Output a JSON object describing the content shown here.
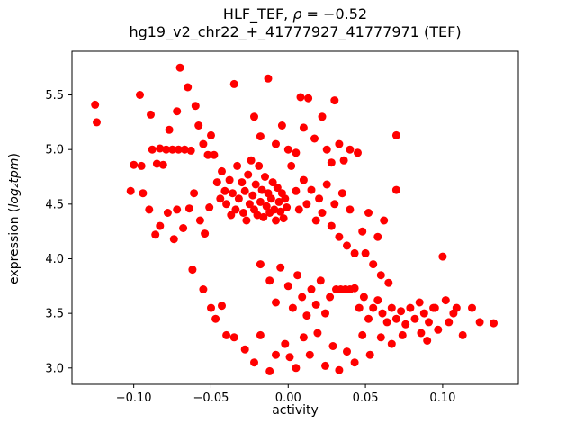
{
  "figure": {
    "title_parts": {
      "prefix": "HLF_TEF, ",
      "rho": "ρ",
      "suffix": " = −0.52"
    },
    "subtitle": "hg19_v2_chr22_+_41777927_41777971 (TEF)"
  },
  "chart_data": {
    "type": "scatter",
    "title": "HLF_TEF, ρ = −0.52",
    "subtitle": "hg19_v2_chr22_+_41777927_41777971 (TEF)",
    "xlabel": "activity",
    "ylabel": "expression (log₂tpm)",
    "ylabel_parts": {
      "prefix": "expression (",
      "italic": "log₂tpm",
      "suffix": ")"
    },
    "marker_color": "#ff0000",
    "marker_radius": 4.5,
    "grid": false,
    "legend": "none",
    "xlim": [
      -0.14,
      0.149
    ],
    "ylim": [
      2.85,
      5.9
    ],
    "xticks": {
      "values": [
        -0.1,
        -0.05,
        0.0,
        0.05,
        0.1
      ],
      "labels": [
        "−0.10",
        "−0.05",
        "0.00",
        "0.05",
        "0.10"
      ]
    },
    "yticks": {
      "values": [
        3.0,
        3.5,
        4.0,
        4.5,
        5.0,
        5.5
      ],
      "labels": [
        "3.0",
        "3.5",
        "4.0",
        "4.5",
        "5.0",
        "5.5"
      ]
    },
    "points": [
      [
        -0.125,
        5.41
      ],
      [
        -0.124,
        5.25
      ],
      [
        -0.096,
        5.5
      ],
      [
        -0.089,
        5.32
      ],
      [
        -0.088,
        5.0
      ],
      [
        -0.083,
        5.01
      ],
      [
        -0.079,
        5.0
      ],
      [
        -0.075,
        5.0
      ],
      [
        -0.071,
        5.0
      ],
      [
        -0.067,
        5.0
      ],
      [
        -0.063,
        4.99
      ],
      [
        -0.1,
        4.86
      ],
      [
        -0.095,
        4.85
      ],
      [
        -0.102,
        4.62
      ],
      [
        -0.094,
        4.6
      ],
      [
        -0.085,
        4.87
      ],
      [
        -0.081,
        4.86
      ],
      [
        -0.077,
        5.18
      ],
      [
        -0.072,
        5.35
      ],
      [
        -0.07,
        5.75
      ],
      [
        -0.065,
        5.57
      ],
      [
        -0.06,
        5.4
      ],
      [
        -0.058,
        5.22
      ],
      [
        -0.055,
        5.05
      ],
      [
        -0.052,
        4.95
      ],
      [
        -0.05,
        5.13
      ],
      [
        -0.09,
        4.45
      ],
      [
        -0.086,
        4.22
      ],
      [
        -0.083,
        4.3
      ],
      [
        -0.078,
        4.42
      ],
      [
        -0.074,
        4.18
      ],
      [
        -0.072,
        4.45
      ],
      [
        -0.068,
        4.28
      ],
      [
        -0.064,
        4.46
      ],
      [
        -0.061,
        4.6
      ],
      [
        -0.057,
        4.35
      ],
      [
        -0.054,
        4.23
      ],
      [
        -0.051,
        4.47
      ],
      [
        -0.062,
        3.9
      ],
      [
        -0.055,
        3.72
      ],
      [
        -0.05,
        3.55
      ],
      [
        -0.047,
        3.45
      ],
      [
        -0.043,
        3.57
      ],
      [
        -0.04,
        3.3
      ],
      [
        -0.035,
        3.28
      ],
      [
        -0.028,
        3.17
      ],
      [
        -0.022,
        3.05
      ],
      [
        -0.012,
        2.97
      ],
      [
        -0.018,
        3.3
      ],
      [
        -0.008,
        3.12
      ],
      [
        -0.048,
        4.95
      ],
      [
        -0.046,
        4.7
      ],
      [
        -0.044,
        4.55
      ],
      [
        -0.043,
        4.8
      ],
      [
        -0.041,
        4.62
      ],
      [
        -0.04,
        4.5
      ],
      [
        -0.038,
        4.72
      ],
      [
        -0.037,
        4.4
      ],
      [
        -0.036,
        4.6
      ],
      [
        -0.034,
        4.45
      ],
      [
        -0.033,
        4.85
      ],
      [
        -0.032,
        4.55
      ],
      [
        -0.03,
        4.7
      ],
      [
        -0.029,
        4.42
      ],
      [
        -0.028,
        4.62
      ],
      [
        -0.027,
        4.35
      ],
      [
        -0.026,
        4.77
      ],
      [
        -0.025,
        4.5
      ],
      [
        -0.024,
        4.9
      ],
      [
        -0.023,
        4.58
      ],
      [
        -0.022,
        4.45
      ],
      [
        -0.021,
        4.68
      ],
      [
        -0.02,
        4.4
      ],
      [
        -0.019,
        4.85
      ],
      [
        -0.018,
        4.52
      ],
      [
        -0.017,
        4.63
      ],
      [
        -0.016,
        4.38
      ],
      [
        -0.015,
        4.75
      ],
      [
        -0.014,
        4.48
      ],
      [
        -0.013,
        4.6
      ],
      [
        -0.012,
        4.42
      ],
      [
        -0.011,
        4.55
      ],
      [
        -0.01,
        4.7
      ],
      [
        -0.009,
        4.45
      ],
      [
        -0.008,
        4.35
      ],
      [
        -0.007,
        4.65
      ],
      [
        -0.006,
        4.52
      ],
      [
        -0.005,
        4.43
      ],
      [
        -0.004,
        4.6
      ],
      [
        -0.003,
        4.37
      ],
      [
        -0.002,
        4.55
      ],
      [
        -0.001,
        4.47
      ],
      [
        -0.035,
        5.6
      ],
      [
        -0.013,
        5.65
      ],
      [
        -0.022,
        5.3
      ],
      [
        -0.018,
        5.12
      ],
      [
        -0.008,
        5.05
      ],
      [
        0.0,
        5.0
      ],
      [
        -0.004,
        5.22
      ],
      [
        0.008,
        5.48
      ],
      [
        0.013,
        5.47
      ],
      [
        0.03,
        5.45
      ],
      [
        0.022,
        5.3
      ],
      [
        0.017,
        5.1
      ],
      [
        0.005,
        4.97
      ],
      [
        0.01,
        5.2
      ],
      [
        0.025,
        5.0
      ],
      [
        0.028,
        4.88
      ],
      [
        0.033,
        5.05
      ],
      [
        0.002,
        4.85
      ],
      [
        0.005,
        4.62
      ],
      [
        0.007,
        4.45
      ],
      [
        0.01,
        4.72
      ],
      [
        0.012,
        4.5
      ],
      [
        0.015,
        4.63
      ],
      [
        0.018,
        4.35
      ],
      [
        0.02,
        4.55
      ],
      [
        0.022,
        4.42
      ],
      [
        0.025,
        4.68
      ],
      [
        0.028,
        4.3
      ],
      [
        0.03,
        4.5
      ],
      [
        0.033,
        4.2
      ],
      [
        0.035,
        4.6
      ],
      [
        0.038,
        4.12
      ],
      [
        0.04,
        4.45
      ],
      [
        0.043,
        4.05
      ],
      [
        0.045,
        4.97
      ],
      [
        0.048,
        4.25
      ],
      [
        0.052,
        4.42
      ],
      [
        0.058,
        4.2
      ],
      [
        0.062,
        4.35
      ],
      [
        0.07,
        4.63
      ],
      [
        0.04,
        5.0
      ],
      [
        0.036,
        4.9
      ],
      [
        0.07,
        5.13
      ],
      [
        -0.018,
        3.95
      ],
      [
        -0.012,
        3.8
      ],
      [
        -0.008,
        3.6
      ],
      [
        -0.005,
        3.92
      ],
      [
        0.0,
        3.75
      ],
      [
        0.003,
        3.55
      ],
      [
        0.006,
        3.85
      ],
      [
        0.009,
        3.65
      ],
      [
        0.012,
        3.48
      ],
      [
        0.015,
        3.72
      ],
      [
        0.018,
        3.58
      ],
      [
        0.021,
        3.8
      ],
      [
        0.024,
        3.5
      ],
      [
        0.027,
        3.65
      ],
      [
        0.031,
        3.72
      ],
      [
        0.034,
        3.72
      ],
      [
        0.037,
        3.72
      ],
      [
        0.04,
        3.72
      ],
      [
        0.043,
        3.73
      ],
      [
        0.046,
        3.55
      ],
      [
        0.049,
        3.65
      ],
      [
        0.052,
        3.45
      ],
      [
        0.055,
        3.55
      ],
      [
        0.058,
        3.62
      ],
      [
        0.061,
        3.5
      ],
      [
        0.064,
        3.42
      ],
      [
        0.067,
        3.55
      ],
      [
        0.07,
        3.45
      ],
      [
        0.073,
        3.52
      ],
      [
        0.076,
        3.4
      ],
      [
        0.079,
        3.55
      ],
      [
        0.082,
        3.45
      ],
      [
        0.085,
        3.6
      ],
      [
        0.088,
        3.5
      ],
      [
        0.091,
        3.42
      ],
      [
        0.094,
        3.55
      ],
      [
        0.097,
        3.35
      ],
      [
        0.055,
        3.95
      ],
      [
        0.06,
        3.85
      ],
      [
        0.065,
        3.78
      ],
      [
        0.05,
        4.05
      ],
      [
        -0.002,
        3.22
      ],
      [
        0.001,
        3.1
      ],
      [
        0.005,
        3.0
      ],
      [
        0.01,
        3.28
      ],
      [
        0.014,
        3.12
      ],
      [
        0.019,
        3.32
      ],
      [
        0.024,
        3.02
      ],
      [
        0.029,
        3.2
      ],
      [
        0.033,
        2.98
      ],
      [
        0.038,
        3.15
      ],
      [
        0.043,
        3.05
      ],
      [
        0.048,
        3.3
      ],
      [
        0.053,
        3.12
      ],
      [
        0.06,
        3.28
      ],
      [
        0.067,
        3.22
      ],
      [
        0.074,
        3.3
      ],
      [
        0.095,
        3.55
      ],
      [
        0.1,
        4.02
      ],
      [
        0.104,
        3.42
      ],
      [
        0.109,
        3.55
      ],
      [
        0.113,
        3.3
      ],
      [
        0.119,
        3.55
      ],
      [
        0.124,
        3.42
      ],
      [
        0.133,
        3.41
      ],
      [
        0.09,
        3.25
      ],
      [
        0.086,
        3.32
      ],
      [
        0.102,
        3.62
      ],
      [
        0.107,
        3.5
      ]
    ]
  }
}
